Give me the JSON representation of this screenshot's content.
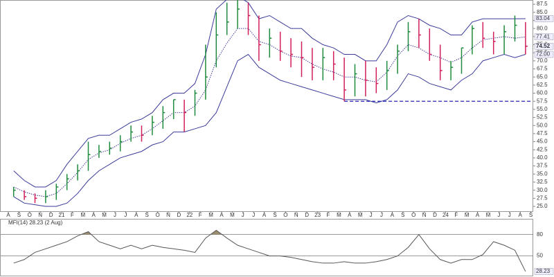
{
  "chart_data": [
    {
      "type": "hlc",
      "categories": [
        "A",
        "S",
        "O",
        "N",
        "D",
        "21",
        "F",
        "M",
        "A",
        "M",
        "J",
        "J",
        "A",
        "S",
        "O",
        "N",
        "D",
        "22",
        "F",
        "M",
        "A",
        "M",
        "J",
        "J",
        "A",
        "S",
        "O",
        "N",
        "D",
        "23",
        "F",
        "M",
        "A",
        "M",
        "J",
        "J",
        "A",
        "S",
        "O",
        "N",
        "D",
        "24",
        "F",
        "M",
        "A",
        "M",
        "J",
        "J",
        "A",
        "S"
      ],
      "high": [
        31,
        30,
        29,
        30,
        32,
        35,
        38,
        45,
        44,
        45,
        47,
        50,
        50,
        53,
        56,
        58,
        58,
        61,
        75,
        85,
        88,
        89,
        88,
        84,
        80,
        79,
        77,
        76,
        74,
        74,
        73,
        71,
        69,
        70,
        68,
        70,
        75,
        82,
        83,
        80,
        75,
        70,
        74,
        81,
        82,
        79,
        81,
        84,
        82,
        null
      ],
      "low": [
        28,
        27,
        26,
        26,
        27,
        30,
        33,
        36,
        40,
        41,
        42,
        45,
        45,
        47,
        49,
        52,
        48,
        53,
        58,
        68,
        78,
        80,
        78,
        70,
        71,
        70,
        68,
        65,
        64,
        64,
        64,
        57.5,
        59,
        59,
        60,
        61,
        66,
        73,
        74,
        70,
        64,
        64,
        66,
        72,
        74,
        72,
        72,
        76,
        72,
        null
      ],
      "close": [
        30,
        28,
        27.5,
        28,
        31,
        33.5,
        36,
        41,
        42,
        43,
        45,
        48,
        47,
        51,
        54,
        58,
        54,
        60,
        65,
        78,
        82,
        86,
        84,
        75,
        77,
        73,
        72,
        71,
        68,
        71,
        69,
        61,
        66,
        64,
        63,
        67,
        73,
        79,
        78,
        72,
        67,
        68,
        74,
        80,
        77,
        76,
        79,
        81,
        74.52,
        null
      ],
      "up_color": "#1e8a3c",
      "down_color": "#d21e5a",
      "bands": [
        {
          "name": "upper",
          "color": "#3a3a9a",
          "values": [
            36,
            33,
            31,
            31,
            33,
            38,
            42,
            46,
            47,
            47,
            49,
            51,
            52,
            54,
            58,
            60,
            60,
            63,
            72,
            86,
            89,
            90,
            88,
            83,
            84,
            82,
            80,
            80,
            77,
            75,
            74,
            72,
            72,
            70,
            70,
            75,
            82,
            84,
            83,
            81,
            80,
            78,
            78,
            82,
            83,
            83,
            83,
            83,
            83.04,
            null
          ]
        },
        {
          "name": "middle",
          "color": "#3a3a9a",
          "dash": true,
          "values": [
            31,
            29.5,
            28.5,
            28,
            29,
            32,
            35.5,
            39.5,
            41.5,
            42.5,
            44.5,
            46,
            47,
            49,
            51.5,
            54,
            54,
            56,
            61,
            70,
            75.5,
            80,
            80,
            76,
            75,
            73,
            71.5,
            71,
            69,
            67.5,
            66.5,
            65,
            65,
            64,
            63.5,
            66.5,
            71.5,
            75,
            74,
            72,
            71,
            69.5,
            71,
            74,
            76.5,
            77,
            77.5,
            77,
            77.41,
            null
          ]
        },
        {
          "name": "lower",
          "color": "#3a3a9a",
          "values": [
            28,
            26,
            25.5,
            25,
            25,
            26,
            29,
            33,
            36,
            38,
            40,
            41,
            42,
            44,
            45,
            48,
            48,
            49,
            50,
            54,
            62,
            70,
            72,
            68,
            66,
            64,
            63,
            62,
            61,
            60,
            59,
            58,
            58,
            58,
            57,
            58,
            61,
            66,
            65,
            63,
            62,
            61,
            64,
            66,
            70,
            71,
            72,
            71,
            72,
            null
          ]
        }
      ],
      "hline": {
        "value": 57.5,
        "from": 31,
        "color": "#2020b0"
      },
      "ylim": [
        23.5,
        88.6
      ],
      "yticks": [
        {
          "value": 25,
          "label": "25.0"
        },
        {
          "value": 27.5,
          "label": "27.5"
        },
        {
          "value": 30,
          "label": "30.0"
        },
        {
          "value": 32.5,
          "label": "32.5"
        },
        {
          "value": 35,
          "label": "35.0"
        },
        {
          "value": 37.5,
          "label": "37.5"
        },
        {
          "value": 40,
          "label": "40.0"
        },
        {
          "value": 42.5,
          "label": "42.5"
        },
        {
          "value": 45,
          "label": "45.0"
        },
        {
          "value": 47.5,
          "label": "47.5"
        },
        {
          "value": 50,
          "label": "50.0"
        },
        {
          "value": 52.5,
          "label": "52.5"
        },
        {
          "value": 55,
          "label": "55.0"
        },
        {
          "value": 57.5,
          "label": "57.5"
        },
        {
          "value": 60,
          "label": "60.0"
        },
        {
          "value": 62.5,
          "label": "62.5"
        },
        {
          "value": 65,
          "label": "65.0"
        },
        {
          "value": 67.5,
          "label": "67.5"
        },
        {
          "value": 70,
          "label": "70.0"
        },
        {
          "value": 72.5,
          "label": "72.5"
        },
        {
          "value": 75,
          "label": "75.0"
        },
        {
          "value": 77.5,
          "label": "77.5"
        },
        {
          "value": 80,
          "label": "80.0"
        },
        {
          "value": 82.5,
          "label": "82.5"
        },
        {
          "value": 85,
          "label": "85.0"
        },
        {
          "value": 87.5,
          "label": "87.5"
        }
      ],
      "markers": [
        {
          "value": 83.04,
          "label": "83.04"
        },
        {
          "value": 77.41,
          "label": "77.41"
        },
        {
          "value": 74.52,
          "label": "74.52"
        },
        {
          "value": 72,
          "label": "72.00"
        }
      ]
    },
    {
      "type": "line",
      "title": "MFI(14) 28.23 (2 Aug)",
      "color": "#555555",
      "fill_color": "#9a9070",
      "threshold": 80,
      "values": [
        40,
        45,
        55,
        60,
        65,
        70,
        78,
        84,
        70,
        65,
        60,
        65,
        60,
        65,
        62,
        60,
        58,
        55,
        75,
        86,
        75,
        65,
        60,
        55,
        50,
        50,
        48,
        45,
        42,
        40,
        40,
        42,
        40,
        40,
        42,
        45,
        50,
        62,
        80,
        60,
        45,
        40,
        45,
        45,
        52,
        70,
        65,
        58,
        28.23,
        null
      ],
      "ylim": [
        22.5,
        100
      ],
      "yticks": [
        80,
        50
      ]
    }
  ]
}
